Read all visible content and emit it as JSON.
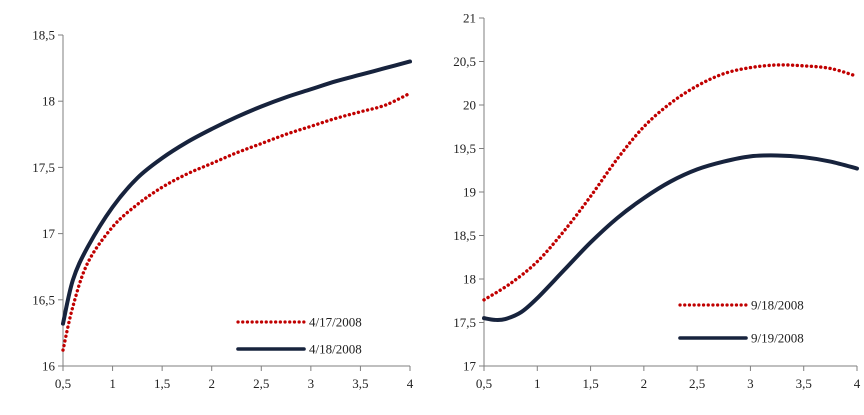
{
  "chart_data": [
    {
      "type": "line",
      "title": "",
      "xlabel": "",
      "ylabel": "",
      "xlim": [
        0.5,
        4
      ],
      "ylim": [
        16,
        18.5
      ],
      "x_ticks": [
        "0,5",
        "1",
        "1,5",
        "2",
        "2,5",
        "3",
        "3,5",
        "4"
      ],
      "x_tick_values": [
        0.5,
        1,
        1.5,
        2,
        2.5,
        3,
        3.5,
        4
      ],
      "y_ticks": [
        "16",
        "16,5",
        "17",
        "17,5",
        "18",
        "18,5"
      ],
      "y_tick_values": [
        16,
        16.5,
        17,
        17.5,
        18,
        18.5
      ],
      "grid": false,
      "legend_position": "bottom-right",
      "series": [
        {
          "name": "4/17/2008",
          "color": "#c00000",
          "style": "dotted",
          "x": [
            0.5,
            0.6,
            0.75,
            1,
            1.25,
            1.5,
            1.75,
            2,
            2.25,
            2.5,
            2.75,
            3,
            3.25,
            3.5,
            3.75,
            4
          ],
          "y": [
            16.12,
            16.45,
            16.78,
            17.05,
            17.22,
            17.35,
            17.45,
            17.53,
            17.61,
            17.68,
            17.75,
            17.81,
            17.87,
            17.92,
            17.97,
            18.06
          ]
        },
        {
          "name": "4/18/2008",
          "color": "#17233d",
          "style": "solid",
          "x": [
            0.5,
            0.6,
            0.75,
            1,
            1.25,
            1.5,
            1.75,
            2,
            2.25,
            2.5,
            2.75,
            3,
            3.25,
            3.5,
            3.75,
            4
          ],
          "y": [
            16.32,
            16.65,
            16.9,
            17.2,
            17.42,
            17.57,
            17.69,
            17.79,
            17.88,
            17.96,
            18.03,
            18.09,
            18.15,
            18.2,
            18.25,
            18.3
          ]
        }
      ]
    },
    {
      "type": "line",
      "title": "",
      "xlabel": "",
      "ylabel": "",
      "xlim": [
        0.5,
        4
      ],
      "ylim": [
        17,
        21
      ],
      "x_ticks": [
        "0,5",
        "1",
        "1,5",
        "2",
        "2,5",
        "3",
        "3,5",
        "4"
      ],
      "x_tick_values": [
        0.5,
        1,
        1.5,
        2,
        2.5,
        3,
        3.5,
        4
      ],
      "y_ticks": [
        "17",
        "17,5",
        "18",
        "18,5",
        "19",
        "19,5",
        "20",
        "20,5",
        "21"
      ],
      "y_tick_values": [
        17,
        17.5,
        18,
        18.5,
        19,
        19.5,
        20,
        20.5,
        21
      ],
      "grid": false,
      "legend_position": "bottom-right",
      "series": [
        {
          "name": "9/18/2008",
          "color": "#c00000",
          "style": "dotted",
          "x": [
            0.5,
            0.75,
            1,
            1.25,
            1.5,
            1.75,
            2,
            2.25,
            2.5,
            2.75,
            3,
            3.25,
            3.5,
            3.75,
            4
          ],
          "y": [
            17.76,
            17.95,
            18.2,
            18.55,
            18.95,
            19.38,
            19.75,
            20.02,
            20.22,
            20.36,
            20.43,
            20.46,
            20.45,
            20.42,
            20.33
          ]
        },
        {
          "name": "9/19/2008",
          "color": "#17233d",
          "style": "solid",
          "x": [
            0.5,
            0.6,
            0.7,
            0.85,
            1,
            1.25,
            1.5,
            1.75,
            2,
            2.25,
            2.5,
            2.75,
            3,
            3.25,
            3.5,
            3.75,
            4
          ],
          "y": [
            17.55,
            17.53,
            17.54,
            17.62,
            17.78,
            18.1,
            18.42,
            18.7,
            18.93,
            19.12,
            19.26,
            19.35,
            19.41,
            19.42,
            19.4,
            19.35,
            19.27
          ]
        }
      ]
    }
  ]
}
